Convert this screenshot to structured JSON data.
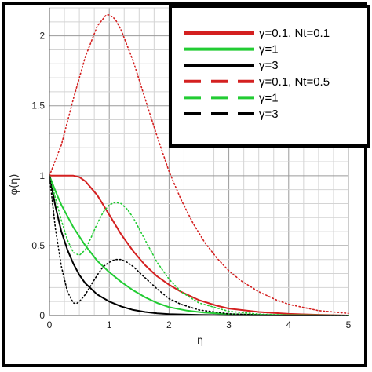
{
  "chart_data": {
    "type": "line",
    "xlabel": "η",
    "ylabel": "φ(η)",
    "xlim": [
      0,
      5
    ],
    "ylim": [
      0,
      2.2
    ],
    "x_ticks": [
      "0",
      "1",
      "2",
      "3",
      "4",
      "5"
    ],
    "y_ticks": [
      "0",
      "0.5",
      "1",
      "1.5",
      "2"
    ],
    "grid": true,
    "legend_position": "top-right",
    "series": [
      {
        "name": "γ=0.1, Nt=0.1",
        "color": "#d42020",
        "style": "solid",
        "x": [
          0,
          0.2,
          0.4,
          0.5,
          0.6,
          0.8,
          1.0,
          1.2,
          1.4,
          1.6,
          1.8,
          2.0,
          2.2,
          2.5,
          2.8,
          3.0,
          3.5,
          4.0,
          4.5,
          5.0
        ],
        "y": [
          1.0,
          1.0,
          1.0,
          0.99,
          0.96,
          0.86,
          0.72,
          0.58,
          0.46,
          0.36,
          0.28,
          0.22,
          0.17,
          0.11,
          0.07,
          0.05,
          0.025,
          0.012,
          0.005,
          0.0
        ]
      },
      {
        "name": "γ=1",
        "color": "#22cc33",
        "style": "solid",
        "x": [
          0,
          0.1,
          0.2,
          0.4,
          0.6,
          0.8,
          1.0,
          1.2,
          1.4,
          1.6,
          1.8,
          2.0,
          2.3,
          2.6,
          3.0,
          3.5,
          4.0,
          5.0
        ],
        "y": [
          1.0,
          0.89,
          0.79,
          0.63,
          0.5,
          0.39,
          0.31,
          0.24,
          0.18,
          0.13,
          0.09,
          0.06,
          0.035,
          0.02,
          0.01,
          0.005,
          0.002,
          0.0
        ]
      },
      {
        "name": "γ=3",
        "color": "#000000",
        "style": "solid",
        "x": [
          0,
          0.1,
          0.2,
          0.3,
          0.4,
          0.5,
          0.6,
          0.8,
          1.0,
          1.2,
          1.4,
          1.6,
          1.8,
          2.0,
          2.5,
          3.0,
          4.0,
          5.0
        ],
        "y": [
          1.0,
          0.78,
          0.6,
          0.47,
          0.37,
          0.29,
          0.23,
          0.15,
          0.1,
          0.065,
          0.04,
          0.025,
          0.015,
          0.01,
          0.004,
          0.001,
          0.0,
          0.0
        ]
      },
      {
        "name": "γ=0.1, Nt=0.5",
        "color": "#d42020",
        "style": "dotted",
        "x": [
          0,
          0.2,
          0.4,
          0.6,
          0.8,
          0.95,
          1.0,
          1.1,
          1.2,
          1.4,
          1.6,
          1.8,
          2.0,
          2.2,
          2.4,
          2.6,
          2.8,
          3.0,
          3.2,
          3.5,
          3.8,
          4.0,
          4.5,
          5.0
        ],
        "y": [
          1.0,
          1.22,
          1.55,
          1.85,
          2.07,
          2.15,
          2.15,
          2.12,
          2.04,
          1.82,
          1.55,
          1.28,
          1.03,
          0.83,
          0.66,
          0.52,
          0.41,
          0.32,
          0.25,
          0.17,
          0.11,
          0.08,
          0.035,
          0.015
        ]
      },
      {
        "name": "γ=1",
        "color": "#22cc33",
        "style": "dotted",
        "x": [
          0,
          0.1,
          0.2,
          0.3,
          0.4,
          0.5,
          0.6,
          0.7,
          0.8,
          0.9,
          1.0,
          1.1,
          1.2,
          1.3,
          1.4,
          1.5,
          1.6,
          1.8,
          2.0,
          2.2,
          2.5,
          3.0,
          3.5,
          4.0,
          5.0
        ],
        "y": [
          1.0,
          0.84,
          0.68,
          0.54,
          0.45,
          0.43,
          0.47,
          0.56,
          0.66,
          0.74,
          0.79,
          0.81,
          0.8,
          0.76,
          0.7,
          0.62,
          0.54,
          0.38,
          0.26,
          0.17,
          0.09,
          0.03,
          0.01,
          0.004,
          0.0
        ]
      },
      {
        "name": "γ=3",
        "color": "#000000",
        "style": "dotted",
        "x": [
          0,
          0.1,
          0.2,
          0.3,
          0.4,
          0.45,
          0.5,
          0.6,
          0.7,
          0.8,
          0.9,
          1.0,
          1.1,
          1.2,
          1.3,
          1.4,
          1.5,
          1.6,
          1.8,
          2.0,
          2.2,
          2.5,
          3.0,
          3.5,
          4.0,
          5.0
        ],
        "y": [
          1.0,
          0.62,
          0.35,
          0.17,
          0.09,
          0.085,
          0.1,
          0.15,
          0.22,
          0.29,
          0.35,
          0.38,
          0.4,
          0.4,
          0.38,
          0.35,
          0.31,
          0.27,
          0.19,
          0.12,
          0.08,
          0.04,
          0.012,
          0.004,
          0.0,
          0.0
        ]
      }
    ]
  }
}
